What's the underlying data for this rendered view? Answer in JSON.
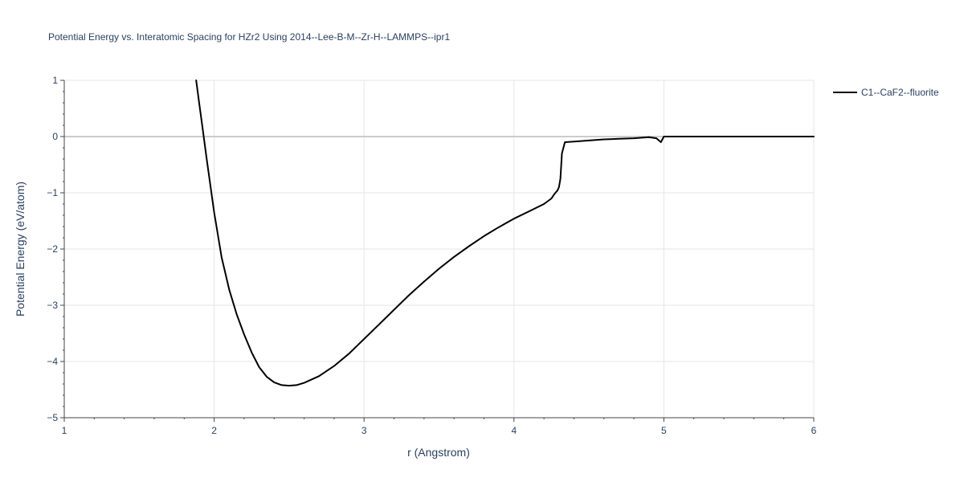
{
  "chart_data": {
    "type": "line",
    "title": "Potential Energy vs. Interatomic Spacing for HZr2 Using 2014--Lee-B-M--Zr-H--LAMMPS--ipr1",
    "xlabel": "r (Angstrom)",
    "ylabel": "Potential Energy (eV/atom)",
    "xlim": [
      1,
      6
    ],
    "ylim": [
      -5,
      1
    ],
    "xticks": [
      1,
      2,
      3,
      4,
      5,
      6
    ],
    "xtick_labels": [
      "1",
      "2",
      "3",
      "4",
      "5",
      "6"
    ],
    "yticks": [
      1,
      0,
      -1,
      -2,
      -3,
      -4,
      -5
    ],
    "ytick_labels": [
      "1",
      "0",
      "−1",
      "−2",
      "−3",
      "−4",
      "−5"
    ],
    "grid": true,
    "legend_position": "top-right",
    "colors": {
      "line": "#000000",
      "grid": "#e6e6e6",
      "zeroline": "#cccccc",
      "axis": "#444444",
      "text": "#2a3f5f"
    },
    "series": [
      {
        "name": "C1--CaF2--fluorite",
        "x": [
          1.88,
          1.9,
          1.92,
          1.95,
          2.0,
          2.05,
          2.1,
          2.15,
          2.2,
          2.25,
          2.3,
          2.35,
          2.4,
          2.45,
          2.5,
          2.55,
          2.6,
          2.7,
          2.8,
          2.9,
          3.0,
          3.1,
          3.2,
          3.3,
          3.4,
          3.5,
          3.6,
          3.7,
          3.8,
          3.9,
          4.0,
          4.1,
          4.2,
          4.25,
          4.27,
          4.29,
          4.3,
          4.31,
          4.32,
          4.34,
          4.4,
          4.5,
          4.6,
          4.7,
          4.8,
          4.9,
          4.95,
          4.98,
          5.0,
          5.2,
          5.5,
          6.0
        ],
        "y": [
          1.0,
          0.6,
          0.2,
          -0.4,
          -1.35,
          -2.15,
          -2.72,
          -3.16,
          -3.52,
          -3.84,
          -4.1,
          -4.27,
          -4.37,
          -4.42,
          -4.43,
          -4.42,
          -4.38,
          -4.26,
          -4.08,
          -3.86,
          -3.6,
          -3.34,
          -3.08,
          -2.82,
          -2.58,
          -2.35,
          -2.14,
          -1.95,
          -1.77,
          -1.61,
          -1.46,
          -1.33,
          -1.2,
          -1.1,
          -1.02,
          -0.96,
          -0.9,
          -0.75,
          -0.3,
          -0.1,
          -0.09,
          -0.07,
          -0.05,
          -0.04,
          -0.03,
          -0.01,
          -0.03,
          -0.1,
          0.0,
          0.0,
          0.0,
          0.0
        ]
      }
    ]
  }
}
